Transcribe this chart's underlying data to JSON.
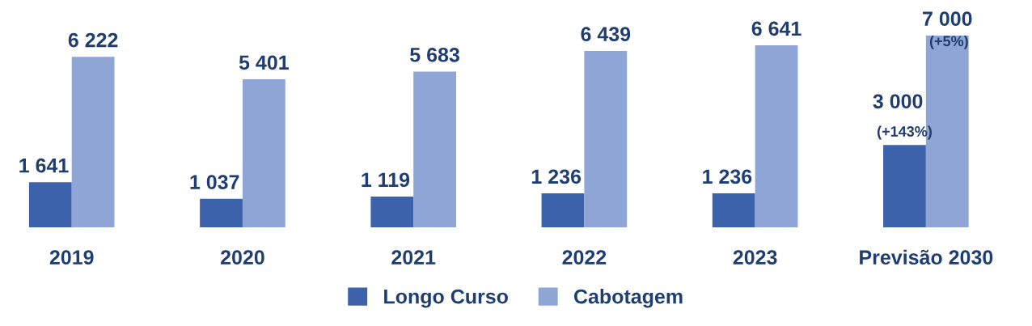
{
  "chart_data": {
    "type": "bar",
    "categories": [
      "2019",
      "2020",
      "2021",
      "2022",
      "2023",
      "Previsão 2030"
    ],
    "series": [
      {
        "name": "Longo Curso",
        "color": "#3c62ab",
        "values": [
          1641,
          1037,
          1119,
          1236,
          1236,
          3000
        ],
        "value_labels": [
          "1 641",
          "1 037",
          "1 119",
          "1 236",
          "1 236",
          "3 000"
        ]
      },
      {
        "name": "Cabotagem",
        "color": "#8fa5d5",
        "values": [
          6222,
          5401,
          5683,
          6439,
          6641,
          7000
        ],
        "value_labels": [
          "6 222",
          "5 401",
          "5 683",
          "6 439",
          "6 641",
          "7 000"
        ]
      }
    ],
    "annotations": [
      {
        "text": "(+143%)",
        "x": "Previsão 2030",
        "y": 3000
      },
      {
        "text": "(+5%)",
        "x": "Previsão 2030",
        "y": 7000
      }
    ],
    "legend": "bottom",
    "grid": false
  }
}
